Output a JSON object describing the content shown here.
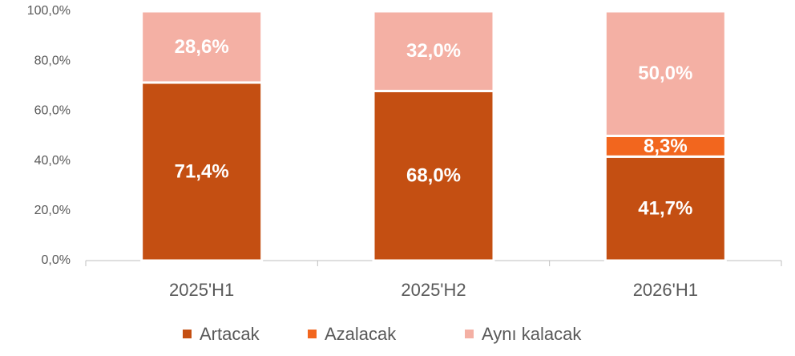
{
  "chart_data": {
    "type": "stacked_bar",
    "categories": [
      "2025'H1",
      "2025'H2",
      "2026'H1"
    ],
    "series": [
      {
        "name": "Artacak",
        "color": "#c44f12",
        "values": [
          71.4,
          68.0,
          41.7
        ],
        "value_labels": [
          "71,4%",
          "68,0%",
          "41,7%"
        ]
      },
      {
        "name": "Azalacak",
        "color": "#f2661e",
        "values": [
          null,
          null,
          8.3
        ],
        "value_labels": [
          null,
          null,
          "8,3%"
        ]
      },
      {
        "name": "Aynı kalacak",
        "color": "#f4b0a4",
        "values": [
          28.6,
          32.0,
          50.0
        ],
        "value_labels": [
          "28,6%",
          "32,0%",
          "50,0%"
        ]
      }
    ],
    "ylim": [
      0,
      100
    ],
    "yticks": [
      {
        "value": 0,
        "label": "0,0%"
      },
      {
        "value": 20,
        "label": "20,0%"
      },
      {
        "value": 40,
        "label": "40,0%"
      },
      {
        "value": 60,
        "label": "60,0%"
      },
      {
        "value": 80,
        "label": "80,0%"
      },
      {
        "value": 100,
        "label": "100,0%"
      }
    ],
    "grid": false,
    "legend": "bottom"
  }
}
